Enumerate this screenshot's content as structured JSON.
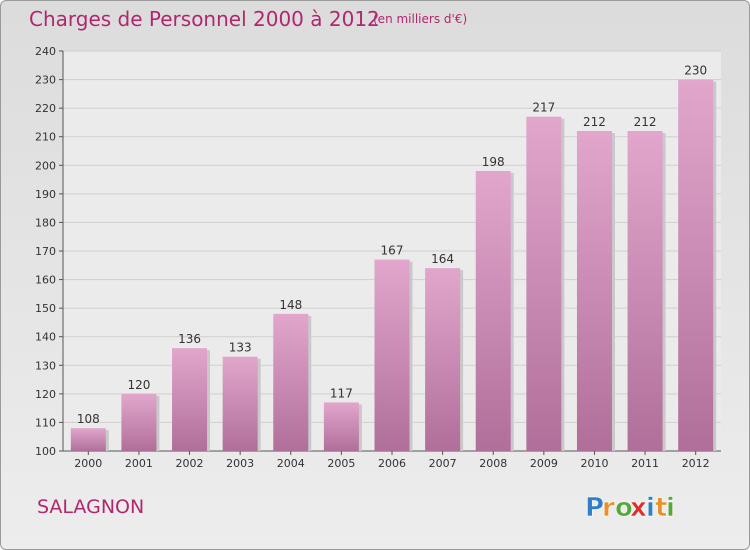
{
  "title": "Charges de Personnel 2000 à 2012",
  "subtitle": "(en milliers d'€)",
  "commune": "SALAGNON",
  "brand": {
    "text": "Proxiti",
    "letters": [
      {
        "ch": "P",
        "color": "#2f7fc8"
      },
      {
        "ch": "r",
        "color": "#e8912a"
      },
      {
        "ch": "o",
        "color": "#57a83a"
      },
      {
        "ch": "x",
        "color": "#d8322b"
      },
      {
        "ch": "i",
        "color": "#2f7fc8"
      },
      {
        "ch": "t",
        "color": "#e8912a"
      },
      {
        "ch": "i",
        "color": "#57a83a"
      }
    ]
  },
  "colors": {
    "bar_top": "#e2a6cc",
    "bar_bottom": "#b06f9a",
    "plot_bg": "#ebebeb",
    "grid": "#cfcfcf",
    "text": "#333333",
    "accent": "#b0276f"
  },
  "chart_data": {
    "type": "bar",
    "title": "Charges de Personnel 2000 à 2012",
    "subtitle": "(en milliers d'€)",
    "categories": [
      "2000",
      "2001",
      "2002",
      "2003",
      "2004",
      "2005",
      "2006",
      "2007",
      "2008",
      "2009",
      "2010",
      "2011",
      "2012"
    ],
    "values": [
      108,
      120,
      136,
      133,
      148,
      117,
      167,
      164,
      198,
      217,
      212,
      212,
      230
    ],
    "ylim": [
      100,
      240
    ],
    "yticks": [
      100,
      110,
      120,
      130,
      140,
      150,
      160,
      170,
      180,
      190,
      200,
      210,
      220,
      230,
      240
    ],
    "grid": true,
    "data_labels": true
  }
}
